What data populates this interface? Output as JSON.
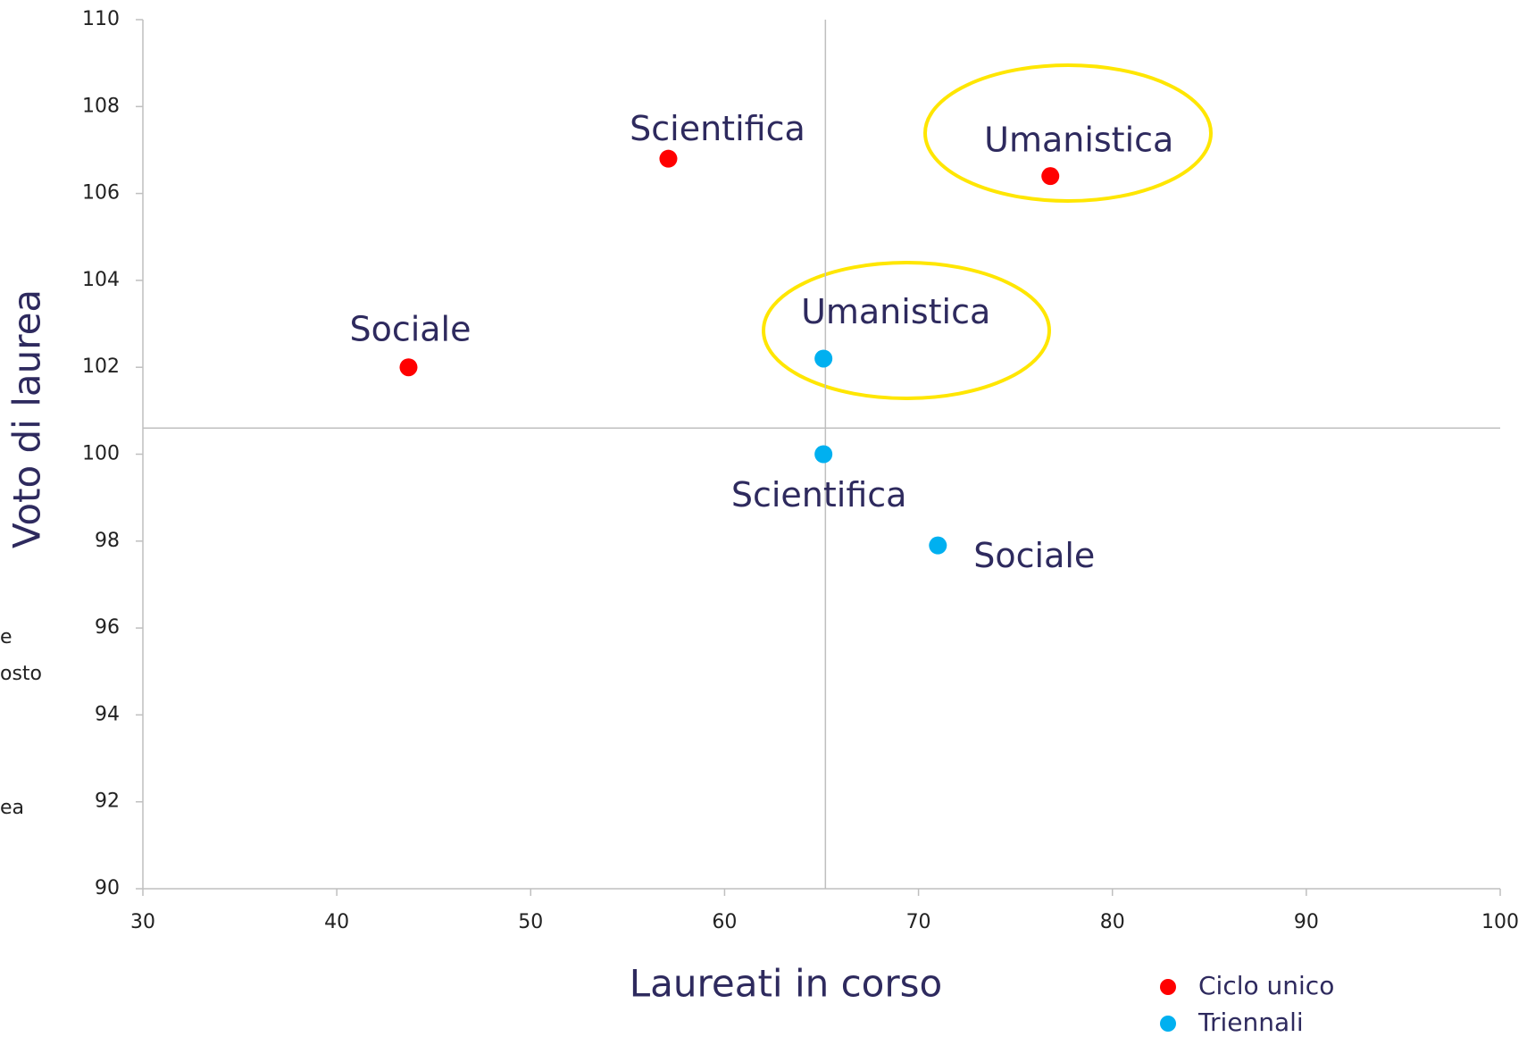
{
  "chart_data": {
    "type": "scatter",
    "x_label": "Laureati in corso",
    "y_label": "Voto di laurea",
    "xlim": [
      30,
      100
    ],
    "xticks": [
      30,
      40,
      50,
      60,
      70,
      80,
      90,
      100
    ],
    "ylim": [
      90,
      110
    ],
    "yticks": [
      90,
      92,
      94,
      96,
      98,
      100,
      102,
      104,
      106,
      108,
      110
    ],
    "reference_lines": {
      "x": 65.2,
      "y": 100.6
    },
    "series": [
      {
        "name": "Ciclo unico",
        "color": "#ff0000",
        "x": [
          57.1,
          76.8,
          43.7
        ],
        "y": [
          106.8,
          106.4,
          102.0
        ],
        "labels": [
          "Scientifica",
          "Umanistica",
          "Sociale"
        ]
      },
      {
        "name": "Triennali",
        "color": "#00b0f0",
        "x": [
          65.1,
          65.1,
          71.0
        ],
        "y": [
          102.2,
          100.0,
          97.9
        ],
        "labels": [
          "Umanistica",
          "Scientifica",
          "Sociale"
        ]
      }
    ],
    "side_notes": [
      "e",
      "osto",
      "ea"
    ]
  }
}
